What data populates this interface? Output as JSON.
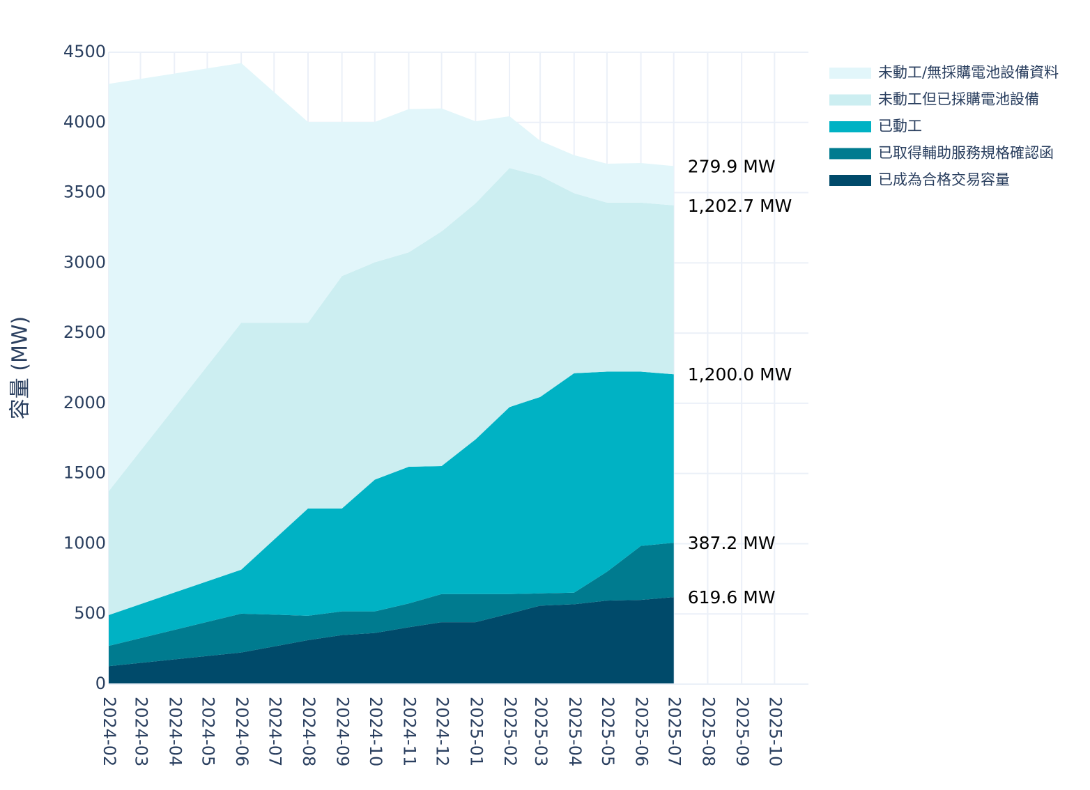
{
  "chart_data": {
    "type": "stacked-area",
    "y_label": "容量 (MW)",
    "x": [
      "2024-02",
      "2024-06",
      "2024-08",
      "2024-09",
      "2024-10",
      "2024-11",
      "2024-12",
      "2025-01",
      "2025-02",
      "2025-03",
      "2025-04",
      "2025-05",
      "2025-06",
      "2025-07"
    ],
    "xlim": [
      "2024-02",
      "2025-11"
    ],
    "xticks": [
      "2024-02",
      "2024-03",
      "2024-04",
      "2024-05",
      "2024-06",
      "2024-07",
      "2024-08",
      "2024-09",
      "2024-10",
      "2024-11",
      "2024-12",
      "2025-01",
      "2025-02",
      "2025-03",
      "2025-04",
      "2025-05",
      "2025-06",
      "2025-07",
      "2025-08",
      "2025-09",
      "2025-10"
    ],
    "ylim": [
      0,
      4500
    ],
    "yticks": [
      0,
      500,
      1000,
      1500,
      2000,
      2500,
      3000,
      3500,
      4000,
      4500
    ],
    "grid": true,
    "series": [
      {
        "name": "已成為合格交易容量",
        "color": "#004a6a",
        "values": [
          128,
          225,
          313,
          349,
          364,
          405,
          441,
          441,
          502,
          559,
          569,
          595,
          600,
          619.6
        ],
        "value_labels": [
          null,
          null,
          null,
          null,
          null,
          null,
          null,
          null,
          null,
          null,
          null,
          null,
          null,
          "619.6 MW"
        ]
      },
      {
        "name": "已取得輔助服務規格確認函",
        "color": "#007b8f",
        "values": [
          144,
          277,
          174,
          169,
          154,
          169,
          200,
          200,
          139,
          87,
          82,
          205,
          384,
          387.2
        ],
        "value_labels": [
          null,
          null,
          null,
          null,
          null,
          null,
          null,
          null,
          null,
          null,
          null,
          null,
          null,
          "387.2 MW"
        ]
      },
      {
        "name": "已動工",
        "color": "#00b2c4",
        "values": [
          220,
          313,
          764,
          733,
          938,
          974,
          912,
          1102,
          1332,
          1399,
          1563,
          1425,
          1241,
          1200.0
        ],
        "value_labels": [
          null,
          null,
          null,
          null,
          null,
          null,
          null,
          null,
          null,
          null,
          null,
          null,
          null,
          "1,200.0 MW"
        ]
      },
      {
        "name": "未動工但已採購電池設備",
        "color": "#cceef1",
        "values": [
          882,
          1758,
          1322,
          1655,
          1548,
          1527,
          1671,
          1681,
          1702,
          1574,
          1282,
          1204,
          1204,
          1202.7
        ],
        "value_labels": [
          null,
          null,
          null,
          null,
          null,
          null,
          null,
          null,
          null,
          null,
          null,
          null,
          null,
          "1,202.7 MW"
        ]
      },
      {
        "name": "未動工/無採購電池設備資料",
        "color": "#e2f6fa",
        "values": [
          2901,
          1850,
          1430,
          1097,
          999,
          1020,
          876,
          584,
          369,
          251,
          271,
          277,
          282,
          279.9
        ],
        "value_labels": [
          null,
          null,
          null,
          null,
          null,
          null,
          null,
          null,
          null,
          null,
          null,
          null,
          null,
          "279.9 MW"
        ]
      }
    ]
  }
}
